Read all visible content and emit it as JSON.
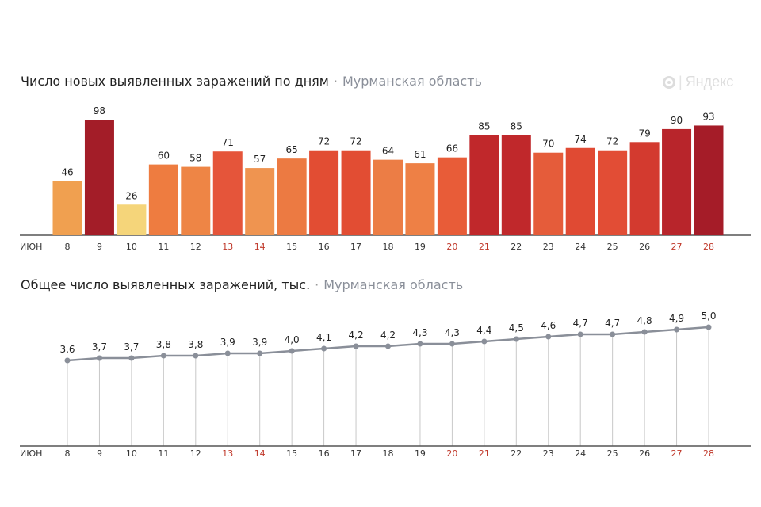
{
  "brand": "Яндекс",
  "colors": {
    "weekend_label": "#c0392b",
    "axis_label": "#333333",
    "line": "#8a8f99",
    "stem": "#c8c8c8"
  },
  "chart_data": [
    {
      "type": "bar",
      "title": "Число новых выявленных заражений по дням",
      "subtitle": "Мурманская область",
      "month_label": "июн",
      "categories": [
        "8",
        "9",
        "10",
        "11",
        "12",
        "13",
        "14",
        "15",
        "16",
        "17",
        "18",
        "19",
        "20",
        "21",
        "22",
        "23",
        "24",
        "25",
        "26",
        "27",
        "28"
      ],
      "values": [
        46,
        98,
        26,
        60,
        58,
        71,
        57,
        65,
        72,
        72,
        64,
        61,
        66,
        85,
        85,
        70,
        74,
        72,
        79,
        90,
        93
      ],
      "bar_colors": [
        "#f0a050",
        "#a31d28",
        "#f5d57a",
        "#ee7c40",
        "#ee8545",
        "#e5553a",
        "#ef9450",
        "#ec7a42",
        "#e24d33",
        "#e24d33",
        "#ec7d45",
        "#ee8045",
        "#e85c38",
        "#c0282b",
        "#c0282b",
        "#e55c3a",
        "#e04a33",
        "#e24d35",
        "#d33a2f",
        "#b8252b",
        "#a51c28"
      ],
      "weekend_categories": [
        "13",
        "14",
        "20",
        "21",
        "27",
        "28"
      ],
      "ylim": [
        0,
        98
      ],
      "grid": false
    },
    {
      "type": "line",
      "title": "Общее число выявленных заражений, тыс.",
      "subtitle": "Мурманская область",
      "month_label": "июн",
      "categories": [
        "8",
        "9",
        "10",
        "11",
        "12",
        "13",
        "14",
        "15",
        "16",
        "17",
        "18",
        "19",
        "20",
        "21",
        "22",
        "23",
        "24",
        "25",
        "26",
        "27",
        "28"
      ],
      "values": [
        3.6,
        3.7,
        3.7,
        3.8,
        3.8,
        3.9,
        3.9,
        4.0,
        4.1,
        4.2,
        4.2,
        4.3,
        4.3,
        4.4,
        4.5,
        4.6,
        4.7,
        4.7,
        4.8,
        4.9,
        5.0
      ],
      "value_labels": [
        "3,6",
        "3,7",
        "3,7",
        "3,8",
        "3,8",
        "3,9",
        "3,9",
        "4,0",
        "4,1",
        "4,2",
        "4,2",
        "4,3",
        "4,3",
        "4,4",
        "4,5",
        "4,6",
        "4,7",
        "4,7",
        "4,8",
        "4,9",
        "5,0"
      ],
      "weekend_categories": [
        "13",
        "14",
        "20",
        "21",
        "27",
        "28"
      ],
      "ylim": [
        0,
        5.0
      ],
      "grid": false
    }
  ]
}
